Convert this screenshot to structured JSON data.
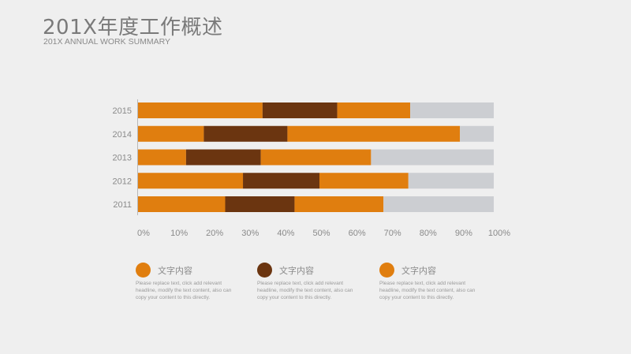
{
  "header": {
    "title": "201X年度工作概述",
    "subtitle": "201X ANNUAL WORK SUMMARY"
  },
  "chart_data": {
    "type": "bar",
    "orientation": "horizontal",
    "stacked": true,
    "categories": [
      "2015",
      "2014",
      "2013",
      "2012",
      "2011"
    ],
    "series": [
      {
        "values": [
          35,
          18.5,
          13.5,
          29.5,
          24.5
        ],
        "color": "#e07e0f"
      },
      {
        "values": [
          21,
          23.5,
          21,
          21.5,
          19.5
        ],
        "color": "#6b3510"
      },
      {
        "values": [
          20.5,
          48.5,
          31,
          25,
          25
        ],
        "color": "#e07e0f"
      },
      {
        "values": [
          23.5,
          9.5,
          34.5,
          24,
          31
        ],
        "color": "#ccced2"
      }
    ],
    "xlim": [
      0,
      100
    ],
    "xticks": [
      "0%",
      "10%",
      "20%",
      "30%",
      "40%",
      "50%",
      "60%",
      "70%",
      "80%",
      "90%",
      "100%"
    ],
    "grid": false
  },
  "legend": [
    {
      "label": "文字内容",
      "color": "#e07e0f",
      "body": "Please replace text, click add relevant headline, modify the text content, also can copy your content to this directly."
    },
    {
      "label": "文字内容",
      "color": "#6b3510",
      "body": "Please replace text, click add relevant headline, modify the text content, also can copy your content to this directly."
    },
    {
      "label": "文字内容",
      "color": "#e07e0f",
      "body": "Please replace text, click add relevant headline, modify the text content, also can copy your content to this directly."
    }
  ]
}
